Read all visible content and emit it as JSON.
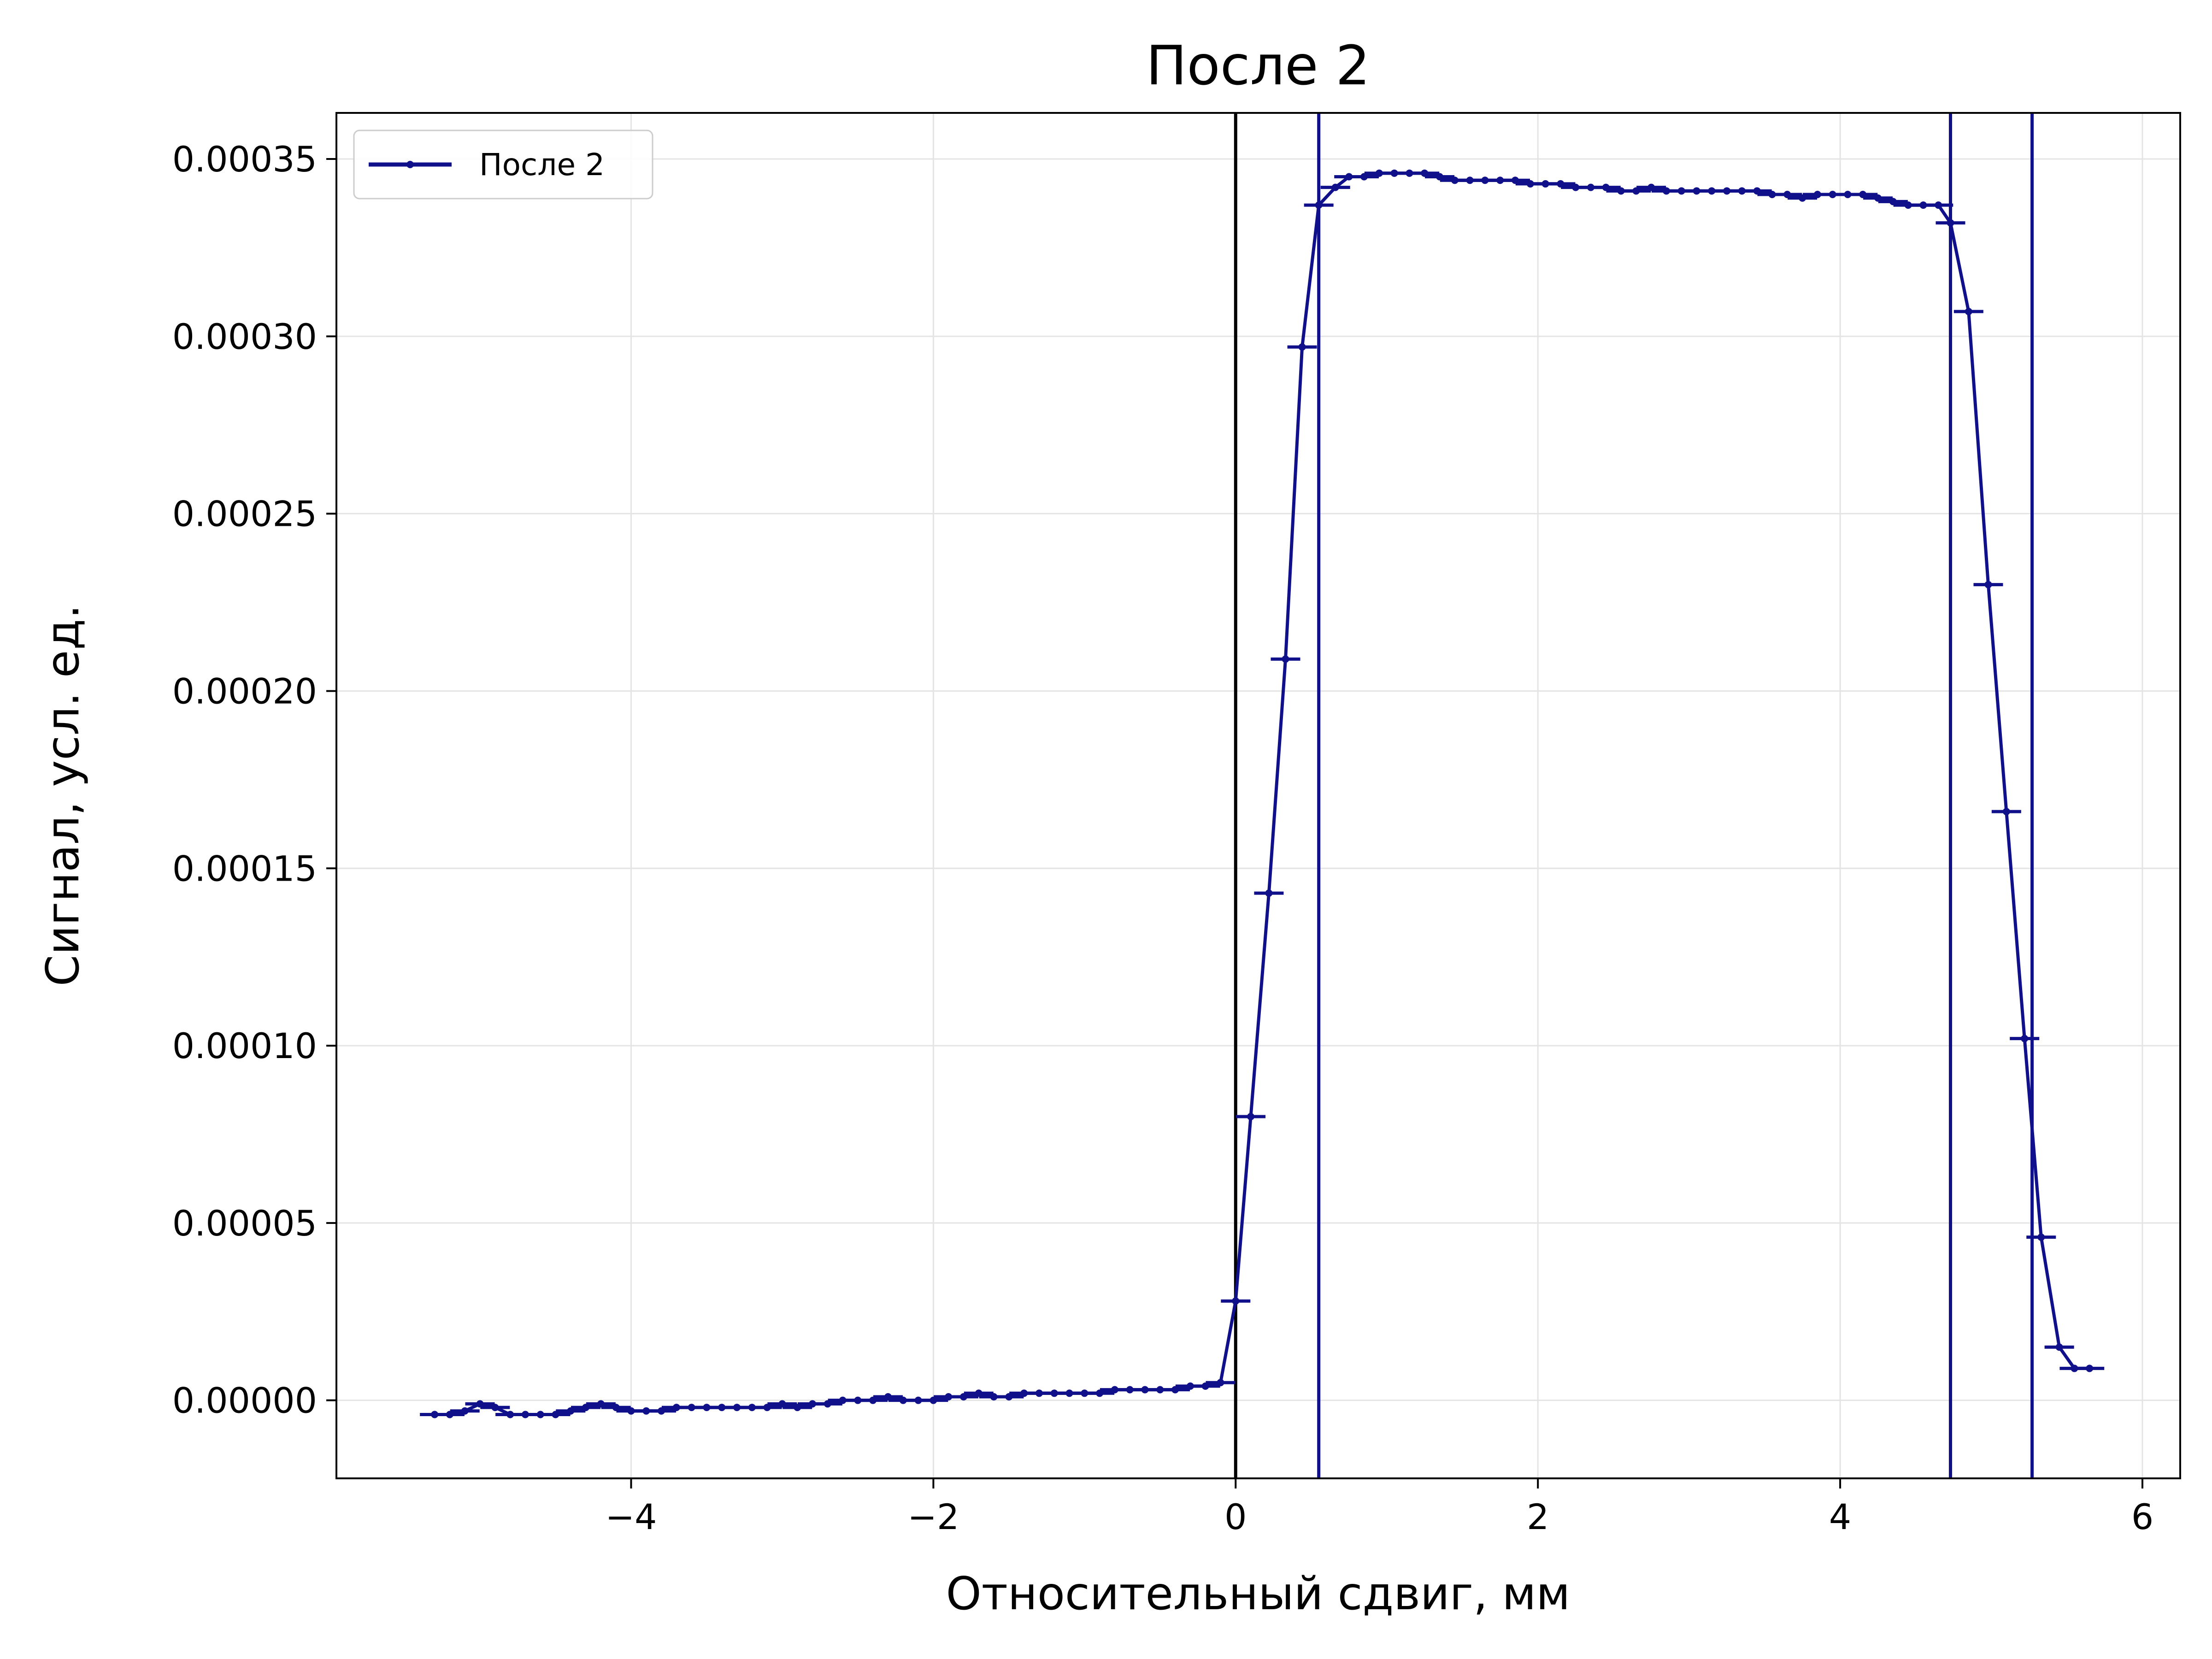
{
  "chart_data": {
    "type": "line",
    "title": "После 2",
    "xlabel": "Относительный сдвиг, мм",
    "ylabel": "Сигнал, усл. ед.",
    "xlim": [
      -5.95,
      6.25
    ],
    "ylim": [
      -2.2e-05,
      0.000363
    ],
    "xticks": [
      -4,
      -2,
      0,
      2,
      4,
      6
    ],
    "xtick_labels": [
      "−4",
      "−2",
      "0",
      "2",
      "4",
      "6"
    ],
    "yticks": [
      0.0,
      5e-05,
      0.0001,
      0.00015,
      0.0002,
      0.00025,
      0.0003,
      0.00035
    ],
    "ytick_labels": [
      "0.00000",
      "0.00005",
      "0.00010",
      "0.00015",
      "0.00020",
      "0.00025",
      "0.00030",
      "0.00035"
    ],
    "grid": true,
    "legend": {
      "position": "top-left",
      "entries": [
        "После 2"
      ]
    },
    "colors": {
      "series": "#10108a",
      "vline_black": "#000000",
      "vline_blue": "#10108a",
      "grid": "#e4e4e4"
    },
    "vertical_lines": [
      {
        "x": 0.0,
        "color": "black"
      },
      {
        "x": 0.55,
        "color": "blue"
      },
      {
        "x": 4.73,
        "color": "blue"
      },
      {
        "x": 5.27,
        "color": "blue"
      }
    ],
    "series": [
      {
        "name": "После 2",
        "x": [
          -5.3,
          -5.2,
          -5.1,
          -5.0,
          -4.9,
          -4.8,
          -4.7,
          -4.6,
          -4.5,
          -4.4,
          -4.3,
          -4.2,
          -4.1,
          -4.0,
          -3.9,
          -3.8,
          -3.7,
          -3.6,
          -3.5,
          -3.4,
          -3.3,
          -3.2,
          -3.1,
          -3.0,
          -2.9,
          -2.8,
          -2.7,
          -2.6,
          -2.5,
          -2.4,
          -2.3,
          -2.2,
          -2.1,
          -2.0,
          -1.9,
          -1.8,
          -1.7,
          -1.6,
          -1.5,
          -1.4,
          -1.3,
          -1.2,
          -1.1,
          -1.0,
          -0.9,
          -0.8,
          -0.7,
          -0.6,
          -0.5,
          -0.4,
          -0.3,
          -0.2,
          -0.1,
          0.0,
          0.1,
          0.22,
          0.33,
          0.44,
          0.55,
          0.66,
          0.75,
          0.85,
          0.95,
          1.05,
          1.15,
          1.25,
          1.35,
          1.45,
          1.55,
          1.65,
          1.75,
          1.85,
          1.95,
          2.05,
          2.15,
          2.25,
          2.35,
          2.45,
          2.55,
          2.65,
          2.75,
          2.85,
          2.95,
          3.05,
          3.15,
          3.25,
          3.35,
          3.45,
          3.55,
          3.65,
          3.75,
          3.85,
          3.95,
          4.05,
          4.15,
          4.25,
          4.35,
          4.45,
          4.55,
          4.65,
          4.73,
          4.85,
          4.98,
          5.1,
          5.22,
          5.33,
          5.45,
          5.55,
          5.65
        ],
        "y": [
          -4e-06,
          -4e-06,
          -3e-06,
          -1e-06,
          -2e-06,
          -4e-06,
          -4e-06,
          -4e-06,
          -4e-06,
          -3e-06,
          -2e-06,
          -1e-06,
          -2e-06,
          -3e-06,
          -3e-06,
          -3e-06,
          -2e-06,
          -2e-06,
          -2e-06,
          -2e-06,
          -2e-06,
          -2e-06,
          -2e-06,
          -1e-06,
          -2e-06,
          -1e-06,
          -1e-06,
          0.0,
          0.0,
          0.0,
          1e-06,
          0.0,
          0.0,
          0.0,
          1e-06,
          1e-06,
          2e-06,
          1e-06,
          1e-06,
          2e-06,
          2e-06,
          2e-06,
          2e-06,
          2e-06,
          2e-06,
          3e-06,
          3e-06,
          3e-06,
          3e-06,
          3e-06,
          4e-06,
          4e-06,
          5e-06,
          2.8e-05,
          8e-05,
          0.000143,
          0.000209,
          0.000297,
          0.000337,
          0.000342,
          0.000345,
          0.000345,
          0.000346,
          0.000346,
          0.000346,
          0.000346,
          0.000345,
          0.000344,
          0.000344,
          0.000344,
          0.000344,
          0.000344,
          0.000343,
          0.000343,
          0.000343,
          0.000342,
          0.000342,
          0.000342,
          0.000341,
          0.000341,
          0.000342,
          0.000341,
          0.000341,
          0.000341,
          0.000341,
          0.000341,
          0.000341,
          0.000341,
          0.00034,
          0.00034,
          0.000339,
          0.00034,
          0.00034,
          0.00034,
          0.00034,
          0.000339,
          0.000338,
          0.000337,
          0.000337,
          0.000337,
          0.000332,
          0.000307,
          0.00023,
          0.000166,
          0.000102,
          4.6e-05,
          1.5e-05,
          9e-06,
          9e-06
        ]
      }
    ]
  }
}
